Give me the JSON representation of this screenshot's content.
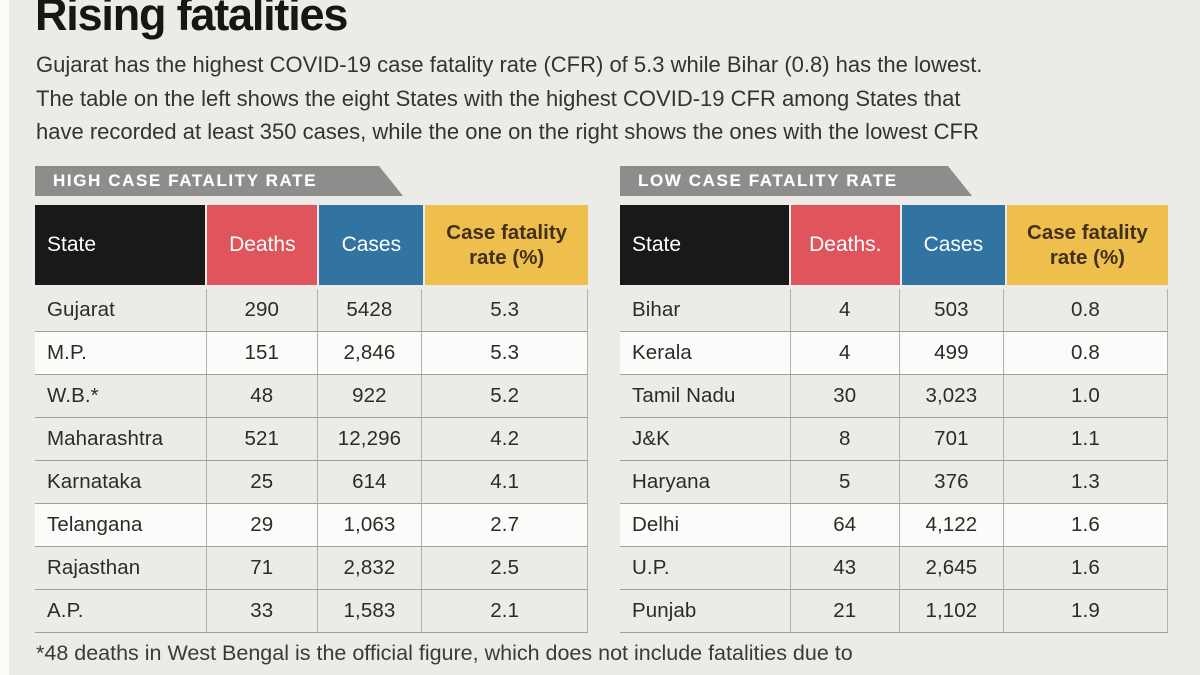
{
  "header": {
    "title": "Rising fatalities",
    "intro_lines": [
      "Gujarat has the highest COVID-19 case fatality rate (CFR) of 5.3 while Bihar (0.8) has the lowest.",
      "The table on the left shows the eight States with the highest COVID-19 CFR among States that",
      "have recorded at least 350 cases, while the one on the right shows the ones with the lowest CFR"
    ]
  },
  "tables": [
    {
      "ribbon": "HIGH CASE FATALITY RATE",
      "columns": [
        "State",
        "Deaths",
        "Cases",
        "Case fatality rate (%)"
      ],
      "rows": [
        [
          "Gujarat",
          "290",
          "5428",
          "5.3"
        ],
        [
          "M.P.",
          "151",
          "2,846",
          "5.3"
        ],
        [
          "W.B.*",
          "48",
          "922",
          "5.2"
        ],
        [
          "Maharashtra",
          "521",
          "12,296",
          "4.2"
        ],
        [
          "Karnataka",
          "25",
          "614",
          "4.1"
        ],
        [
          "Telangana",
          "29",
          "1,063",
          "2.7"
        ],
        [
          "Rajasthan",
          "71",
          "2,832",
          "2.5"
        ],
        [
          "A.P.",
          "33",
          "1,583",
          "2.1"
        ]
      ]
    },
    {
      "ribbon": "LOW CASE FATALITY RATE",
      "columns": [
        "State",
        "Deaths.",
        "Cases",
        "Case fatality rate (%)"
      ],
      "rows": [
        [
          "Bihar",
          "4",
          "503",
          "0.8"
        ],
        [
          "Kerala",
          "4",
          "499",
          "0.8"
        ],
        [
          "Tamil Nadu",
          "30",
          "3,023",
          "1.0"
        ],
        [
          "J&K",
          "8",
          "701",
          "1.1"
        ],
        [
          "Haryana",
          "5",
          "376",
          "1.3"
        ],
        [
          "Delhi",
          "64",
          "4,122",
          "1.6"
        ],
        [
          "U.P.",
          "43",
          "2,645",
          "1.6"
        ],
        [
          "Punjab",
          "21",
          "1,102",
          "1.9"
        ]
      ]
    }
  ],
  "footer": {
    "note": "*48 deaths in West Bengal is the official figure, which does not include fatalities due to"
  },
  "colors": {
    "background": "#ecebe7",
    "ribbon_gray": "#8d8d8c",
    "state_header_black": "#191919",
    "deaths_header_red": "#e0545c",
    "cases_header_blue": "#3173a1",
    "cfr_header_yellow": "#efbf4e",
    "row_rule_gray": "#9f9f9d"
  },
  "chart_data": [
    {
      "type": "table",
      "title": "HIGH CASE FATALITY RATE",
      "columns": [
        "State",
        "Deaths",
        "Cases",
        "Case fatality rate (%)"
      ],
      "rows": [
        [
          "Gujarat",
          290,
          5428,
          5.3
        ],
        [
          "M.P.",
          151,
          2846,
          5.3
        ],
        [
          "W.B.*",
          48,
          922,
          5.2
        ],
        [
          "Maharashtra",
          521,
          12296,
          4.2
        ],
        [
          "Karnataka",
          25,
          614,
          4.1
        ],
        [
          "Telangana",
          29,
          1063,
          2.7
        ],
        [
          "Rajasthan",
          71,
          2832,
          2.5
        ],
        [
          "A.P.",
          33,
          1583,
          2.1
        ]
      ]
    },
    {
      "type": "table",
      "title": "LOW CASE FATALITY RATE",
      "columns": [
        "State",
        "Deaths",
        "Cases",
        "Case fatality rate (%)"
      ],
      "rows": [
        [
          "Bihar",
          4,
          503,
          0.8
        ],
        [
          "Kerala",
          4,
          499,
          0.8
        ],
        [
          "Tamil Nadu",
          30,
          3023,
          1.0
        ],
        [
          "J&K",
          8,
          701,
          1.1
        ],
        [
          "Haryana",
          5,
          376,
          1.3
        ],
        [
          "Delhi",
          64,
          4122,
          1.6
        ],
        [
          "U.P.",
          43,
          2645,
          1.6
        ],
        [
          "Punjab",
          21,
          1102,
          1.9
        ]
      ]
    }
  ]
}
